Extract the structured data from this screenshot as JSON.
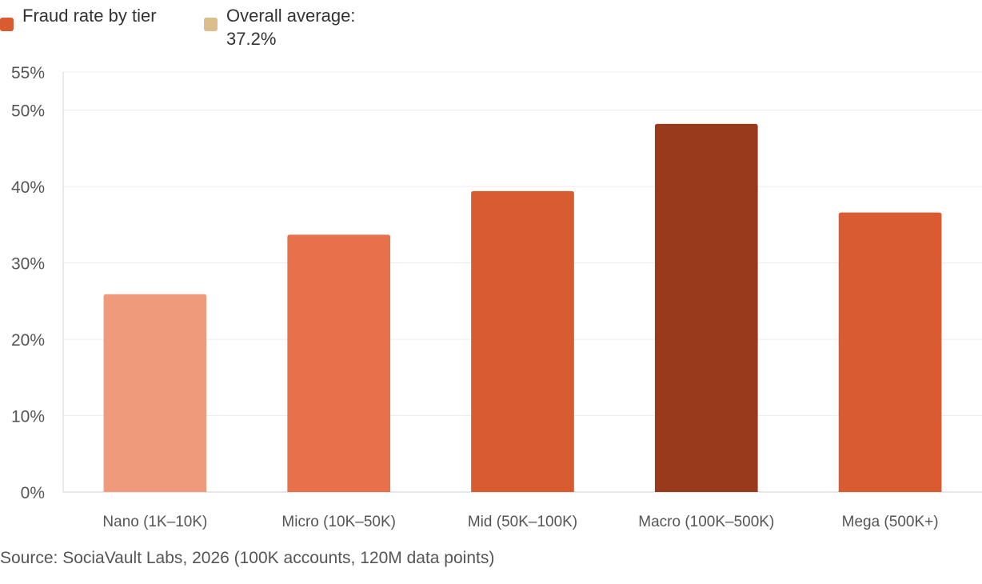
{
  "chart_data": {
    "type": "bar",
    "categories": [
      "Nano (1K–10K)",
      "Micro (10K–50K)",
      "Mid (50K–100K)",
      "Macro (100K–500K)",
      "Mega (500K+)"
    ],
    "values": [
      25.9,
      33.7,
      39.4,
      48.2,
      36.6
    ],
    "colors": [
      "#f09a7c",
      "#e8714c",
      "#d95b32",
      "#9a3a1d",
      "#d95b32"
    ],
    "series_name": "Fraud rate by tier",
    "ylim": [
      0,
      55
    ],
    "yticks": [
      0,
      10,
      20,
      30,
      40,
      50,
      55
    ],
    "ytick_labels": [
      "0%",
      "10%",
      "20%",
      "30%",
      "40%",
      "50%",
      "55%"
    ],
    "grid": true
  },
  "legend": {
    "items": [
      {
        "label": "Fraud rate by tier",
        "color": "#d95b32"
      },
      {
        "label": "Overall average: 37.2%",
        "color": "#dcbd8c"
      }
    ]
  },
  "source": "Source: SociaVault Labs, 2026 (100K accounts, 120M data points)"
}
